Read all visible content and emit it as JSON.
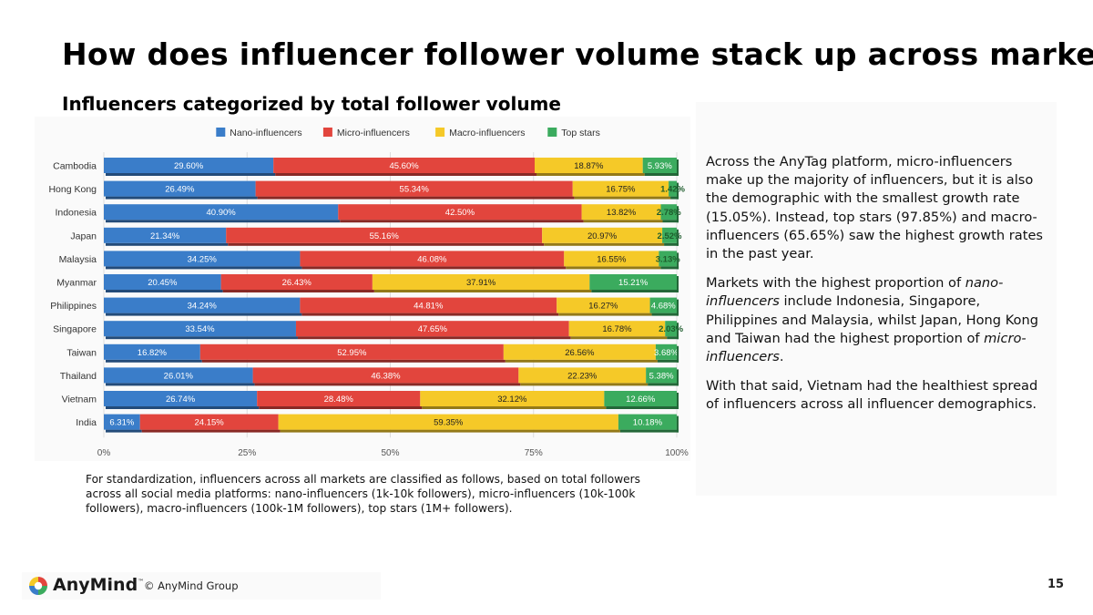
{
  "header": {
    "title": "How does influencer follower volume stack up across markets?",
    "subtitle": "Influencers categorized by total follower volume"
  },
  "chart_data": {
    "type": "bar",
    "orientation": "horizontal",
    "stacked": true,
    "title": "Influencers categorized by total follower volume",
    "categories": [
      "Cambodia",
      "Hong Kong",
      "Indonesia",
      "Japan",
      "Malaysia",
      "Myanmar",
      "Philippines",
      "Singapore",
      "Taiwan",
      "Thailand",
      "Vietnam",
      "India"
    ],
    "series": [
      {
        "name": "Nano-influencers",
        "color": "#3a7dc9",
        "values": [
          29.6,
          26.49,
          40.9,
          21.34,
          34.25,
          20.45,
          34.24,
          33.54,
          16.82,
          26.01,
          26.74,
          6.31
        ],
        "labels": [
          "29.60%",
          "26.49%",
          "40.90%",
          "21.34%",
          "34.25%",
          "20.45%",
          "34.24%",
          "33.54%",
          "16.82%",
          "26.01%",
          "26.74%",
          "6.31%"
        ]
      },
      {
        "name": "Micro-influencers",
        "color": "#e2453d",
        "values": [
          45.6,
          55.34,
          42.5,
          55.16,
          46.08,
          26.43,
          44.81,
          47.65,
          52.95,
          46.38,
          28.48,
          24.15
        ],
        "labels": [
          "45.60%",
          "55.34%",
          "42.50%",
          "55.16%",
          "46.08%",
          "26.43%",
          "44.81%",
          "47.65%",
          "52.95%",
          "46.38%",
          "28.48%",
          "24.15%"
        ]
      },
      {
        "name": "Macro-influencers",
        "color": "#f5c928",
        "values": [
          18.87,
          16.75,
          13.82,
          20.97,
          16.55,
          37.91,
          16.27,
          16.78,
          26.56,
          22.23,
          32.12,
          59.35
        ],
        "labels": [
          "18.87%",
          "16.75%",
          "13.82%",
          "20.97%",
          "16.55%",
          "37.91%",
          "16.27%",
          "16.78%",
          "26.56%",
          "22.23%",
          "32.12%",
          "59.35%"
        ]
      },
      {
        "name": "Top stars",
        "color": "#3bab5e",
        "values": [
          5.93,
          1.42,
          2.78,
          2.52,
          3.13,
          15.21,
          4.68,
          2.03,
          3.68,
          5.38,
          12.66,
          10.18
        ],
        "labels": [
          "5.93%",
          "1.42%",
          "2.78%",
          "2.52%",
          "3.13%",
          "15.21%",
          "4.68%",
          "2.03%",
          "3.68%",
          "5.38%",
          "12.66%",
          "10.18%"
        ]
      }
    ],
    "xlim": [
      0,
      100
    ],
    "x_ticks": [
      "0%",
      "25%",
      "50%",
      "75%",
      "100%"
    ],
    "x_tick_values": [
      0,
      25,
      50,
      75,
      100
    ],
    "legend_position": "top-center",
    "grid": true
  },
  "commentary": {
    "p1": "Across the AnyTag platform, micro-influencers make up the majority of influencers, but it is also the demographic with the smallest growth rate (15.05%). Instead, top stars (97.85%) and macro-influencers (65.65%) saw the highest growth rates in the past year.",
    "p2_start": "Markets with the highest proportion of ",
    "p2_em1": "nano-influencers",
    "p2_mid": " include Indonesia, Singapore, Philippines and Malaysia, whilst Japan, Hong Kong and Taiwan had the highest proportion of ",
    "p2_em2": "micro-influencers",
    "p2_end": ".",
    "p3": "With that said, Vietnam had the healthiest spread of influencers across all influencer demographics."
  },
  "footnote": "For standardization, influencers across all markets are classified as follows, based on total followers across all social media platforms: nano-influencers (1k-10k followers), micro-influencers (10k-100k followers), macro-influencers (100k-1M followers), top stars (1M+ followers).",
  "footer": {
    "brand": "AnyMind",
    "trademark": "™",
    "copyright": "© AnyMind Group",
    "page_number": "15"
  },
  "colors": {
    "nano": "#3a7dc9",
    "micro": "#e2453d",
    "macro": "#f5c928",
    "top": "#3bab5e"
  }
}
